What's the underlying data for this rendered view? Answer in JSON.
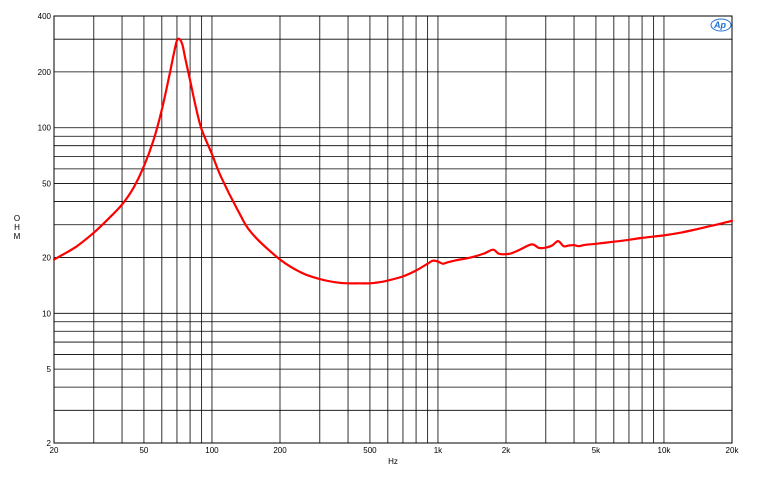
{
  "chart_data": {
    "type": "line",
    "title": "",
    "xlabel": "Hz",
    "ylabel": "OHM",
    "xscale": "log",
    "yscale": "log",
    "xlim": [
      20,
      20000
    ],
    "ylim": [
      2,
      400
    ],
    "grid": true,
    "x_tick_labels": [
      {
        "value": 20,
        "label": "20"
      },
      {
        "value": 50,
        "label": "50"
      },
      {
        "value": 100,
        "label": "100"
      },
      {
        "value": 200,
        "label": "200"
      },
      {
        "value": 500,
        "label": "500"
      },
      {
        "value": 1000,
        "label": "1k"
      },
      {
        "value": 2000,
        "label": "2k"
      },
      {
        "value": 5000,
        "label": "5k"
      },
      {
        "value": 10000,
        "label": "10k"
      },
      {
        "value": 20000,
        "label": "20k"
      }
    ],
    "y_tick_labels": [
      {
        "value": 2,
        "label": "2"
      },
      {
        "value": 5,
        "label": "5"
      },
      {
        "value": 10,
        "label": "10"
      },
      {
        "value": 20,
        "label": "20"
      },
      {
        "value": 50,
        "label": "50"
      },
      {
        "value": 100,
        "label": "100"
      },
      {
        "value": 200,
        "label": "200"
      },
      {
        "value": 400,
        "label": "400"
      }
    ],
    "x_grid": [
      20,
      30,
      40,
      50,
      60,
      70,
      80,
      90,
      100,
      200,
      300,
      400,
      500,
      600,
      700,
      800,
      900,
      1000,
      2000,
      3000,
      4000,
      5000,
      6000,
      7000,
      8000,
      9000,
      10000,
      20000
    ],
    "y_grid": [
      2,
      3,
      4,
      5,
      6,
      7,
      8,
      9,
      10,
      20,
      30,
      40,
      50,
      60,
      70,
      80,
      90,
      100,
      200,
      300,
      400
    ],
    "series": [
      {
        "color": "#ff0000",
        "x": [
          20,
          25,
          30,
          35,
          40,
          45,
          50,
          55,
          60,
          65,
          68,
          70,
          72,
          74,
          76,
          80,
          85,
          90,
          100,
          110,
          130,
          150,
          200,
          250,
          300,
          350,
          400,
          450,
          500,
          550,
          600,
          700,
          800,
          900,
          950,
          1000,
          1050,
          1100,
          1200,
          1400,
          1600,
          1750,
          1850,
          1950,
          2100,
          2300,
          2600,
          2800,
          3000,
          3200,
          3400,
          3600,
          3800,
          4000,
          4200,
          4500,
          5000,
          6000,
          7000,
          8000,
          10000,
          12000,
          14000,
          16000,
          18000,
          20000
        ],
        "y": [
          19.5,
          22.8,
          27.2,
          32.5,
          38.5,
          47.5,
          62,
          85,
          125,
          195,
          255,
          295,
          300,
          280,
          240,
          180,
          128,
          98,
          72,
          54,
          36,
          27,
          19.5,
          16.5,
          15.3,
          14.7,
          14.5,
          14.5,
          14.5,
          14.7,
          15.0,
          15.8,
          17.0,
          18.5,
          19.2,
          19.0,
          18.5,
          18.8,
          19.3,
          20.0,
          21.0,
          22.0,
          21.0,
          20.8,
          21.0,
          22.0,
          23.5,
          22.5,
          22.6,
          23.2,
          24.5,
          23.0,
          23.2,
          23.3,
          23.0,
          23.4,
          23.7,
          24.3,
          24.9,
          25.5,
          26.3,
          27.3,
          28.4,
          29.5,
          30.5,
          31.5
        ]
      }
    ]
  },
  "branding": {
    "logo_text": "Ap",
    "logo_color": "#1e6fd6"
  }
}
